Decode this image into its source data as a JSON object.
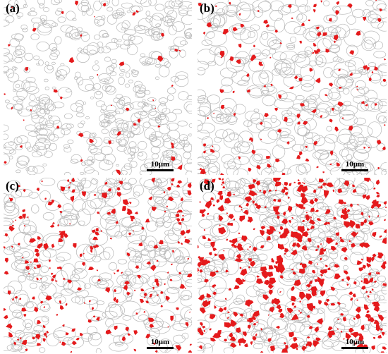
{
  "panels": [
    {
      "label": "(a)",
      "scale_bar": "10μm"
    },
    {
      "label": "(b)",
      "scale_bar": "10μm"
    },
    {
      "label": "(c)",
      "scale_bar": "10μm"
    },
    {
      "label": "(d)",
      "scale_bar": "10μm"
    }
  ]
}
